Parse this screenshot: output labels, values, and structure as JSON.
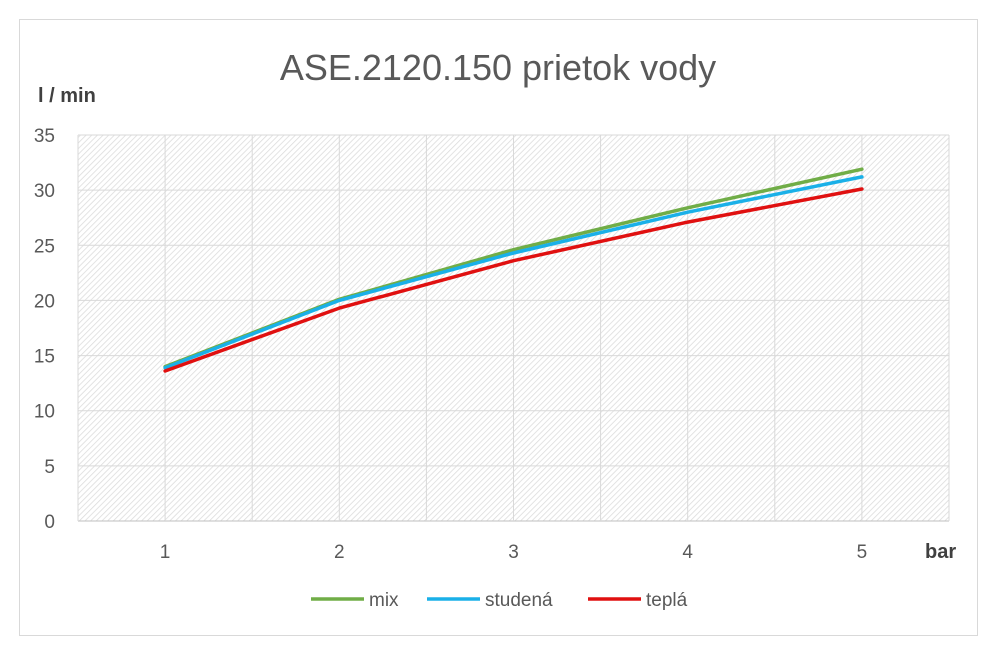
{
  "chart_data": {
    "type": "line",
    "title": "ASE.2120.150 prietok vody",
    "ylabel": "l / min",
    "xlabel": "bar",
    "categories": [
      "1",
      "2",
      "3",
      "4",
      "5"
    ],
    "ylim": [
      0,
      35
    ],
    "yticks": [
      0,
      5,
      10,
      15,
      20,
      25,
      30,
      35
    ],
    "grid": true,
    "legend_position": "bottom",
    "series": [
      {
        "name": "mix",
        "color": "#70ad47",
        "values": [
          14.0,
          20.1,
          24.6,
          28.4,
          31.9
        ]
      },
      {
        "name": "studená",
        "color": "#1ab0e8",
        "values": [
          13.9,
          20.0,
          24.3,
          28.0,
          31.2
        ]
      },
      {
        "name": "teplá",
        "color": "#e01010",
        "values": [
          13.6,
          19.3,
          23.6,
          27.1,
          30.1
        ]
      }
    ]
  }
}
